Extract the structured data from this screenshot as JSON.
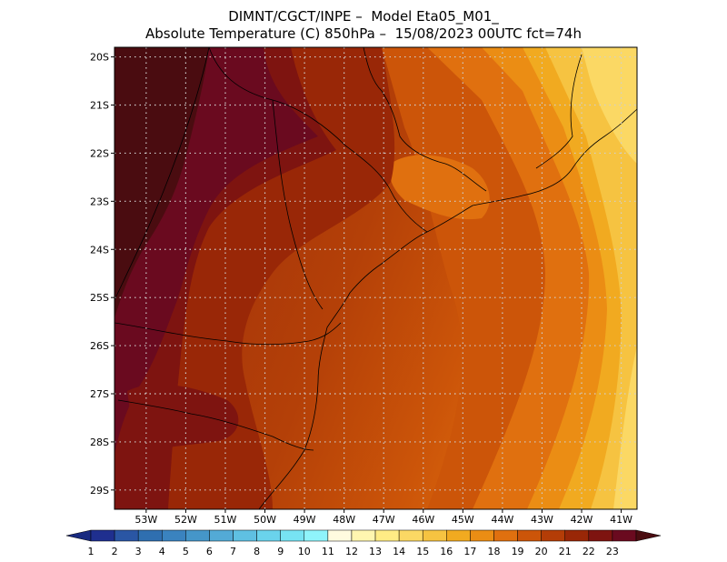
{
  "header": {
    "line1": "DIMNT/CGCT/INPE –  Model Eta05_M01_",
    "line2": "Absolute Temperature (C) 850hPa –  15/08/2023 00UTC fct=74h"
  },
  "map": {
    "lat_labels": [
      "20S",
      "21S",
      "22S",
      "23S",
      "24S",
      "25S",
      "26S",
      "27S",
      "28S",
      "29S"
    ],
    "lon_labels": [
      "53W",
      "52W",
      "51W",
      "50W",
      "49W",
      "48W",
      "47W",
      "46W",
      "45W",
      "44W",
      "43W",
      "42W",
      "41W"
    ],
    "extent": {
      "lon_min": -53.8,
      "lon_max": -40.6,
      "lat_min": -29.4,
      "lat_max": -19.8
    },
    "grid": true,
    "grid_style": "dotted"
  },
  "colorbar": {
    "labels": [
      "1",
      "2",
      "3",
      "4",
      "5",
      "6",
      "7",
      "8",
      "9",
      "10",
      "11",
      "12",
      "13",
      "14",
      "15",
      "16",
      "17",
      "18",
      "19",
      "20",
      "21",
      "22",
      "23"
    ],
    "colors": [
      "#1f2f8f",
      "#2a56a4",
      "#2f6fb0",
      "#3a83bf",
      "#4596c9",
      "#53aad6",
      "#5fc0e2",
      "#6ad3ec",
      "#77e3f3",
      "#8ff4fb",
      "#fffbdf",
      "#fff6b0",
      "#ffec85",
      "#fbd864",
      "#f6c341",
      "#f1aa20",
      "#eb8d14",
      "#e0700f",
      "#cc5509",
      "#b43d07",
      "#992707",
      "#7e1410",
      "#6a0a1f"
    ],
    "arrow_left_color": "#182a80",
    "arrow_right_color": "#4a0c10"
  }
}
